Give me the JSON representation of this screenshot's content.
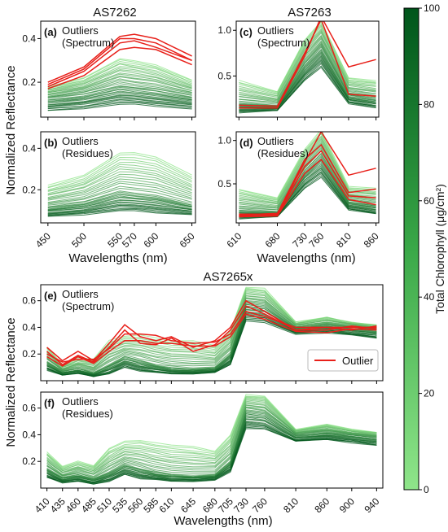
{
  "colors": {
    "outlier": "#e8201a",
    "green_light": "#8fe58a",
    "green_dark": "#00551b",
    "axis": "#000000"
  },
  "colorbar": {
    "label": "Total Chlorophyll (μg/cm²)",
    "ticks": [
      "0",
      "20",
      "40",
      "60",
      "80",
      "100"
    ],
    "range": [
      0,
      100
    ]
  },
  "chart_data": [
    {
      "id": "a",
      "type": "line",
      "group_title": "AS7262",
      "panel_label": "(a)",
      "annotation": [
        "Outliers",
        "(Spectrum)"
      ],
      "xlabel": "",
      "ylabel": "Normalized Reflectance",
      "x": [
        450,
        500,
        550,
        570,
        600,
        650
      ],
      "xticks": [],
      "xlim": [
        440,
        655
      ],
      "ylim": [
        0.04,
        0.48
      ],
      "yticks": [
        0.2,
        0.4
      ],
      "ytick_labels": [
        "0.2",
        "0.4"
      ],
      "green_band": {
        "high": [
          0.18,
          0.22,
          0.31,
          0.3,
          0.28,
          0.21
        ],
        "mid": [
          0.13,
          0.15,
          0.19,
          0.18,
          0.17,
          0.14
        ],
        "low": [
          0.07,
          0.08,
          0.1,
          0.1,
          0.09,
          0.08
        ]
      },
      "outliers": [
        [
          0.17,
          0.23,
          0.35,
          0.36,
          0.35,
          0.28
        ],
        [
          0.18,
          0.25,
          0.38,
          0.39,
          0.36,
          0.3
        ],
        [
          0.19,
          0.26,
          0.4,
          0.4,
          0.38,
          0.3
        ],
        [
          0.2,
          0.27,
          0.41,
          0.42,
          0.4,
          0.32
        ]
      ]
    },
    {
      "id": "b",
      "type": "line",
      "group_title": "",
      "panel_label": "(b)",
      "annotation": [
        "Outliers",
        "(Residues)"
      ],
      "xlabel": "Wavelengths (nm)",
      "ylabel": "Normalized Reflectance",
      "x": [
        450,
        500,
        550,
        570,
        600,
        650
      ],
      "xticks": [
        450,
        500,
        550,
        570,
        600,
        650
      ],
      "xtick_labels": [
        "450",
        "500",
        "550",
        "570",
        "600",
        "650"
      ],
      "xlim": [
        440,
        655
      ],
      "ylim": [
        0.04,
        0.48
      ],
      "yticks": [
        0.2,
        0.4
      ],
      "ytick_labels": [
        "0.2",
        "0.4"
      ],
      "green_band": {
        "high": [
          0.22,
          0.27,
          0.38,
          0.38,
          0.36,
          0.27
        ],
        "mid": [
          0.12,
          0.14,
          0.19,
          0.18,
          0.17,
          0.13
        ],
        "low": [
          0.07,
          0.08,
          0.1,
          0.1,
          0.09,
          0.08
        ]
      },
      "outliers": []
    },
    {
      "id": "c",
      "type": "line",
      "group_title": "AS7263",
      "panel_label": "(c)",
      "annotation": [
        "Outliers",
        "(Spectrum)"
      ],
      "xlabel": "",
      "ylabel": "",
      "x": [
        610,
        680,
        730,
        760,
        810,
        860
      ],
      "xticks": [],
      "xlim": [
        605,
        865
      ],
      "ylim": [
        0.05,
        1.1
      ],
      "yticks": [
        0.5,
        1.0
      ],
      "ytick_labels": [
        "0.5",
        "1.0"
      ],
      "green_band": {
        "high": [
          0.45,
          0.33,
          0.9,
          1.1,
          0.48,
          0.45
        ],
        "mid": [
          0.2,
          0.18,
          0.65,
          0.85,
          0.3,
          0.26
        ],
        "low": [
          0.1,
          0.12,
          0.45,
          0.6,
          0.2,
          0.15
        ]
      },
      "outliers": [
        [
          0.15,
          0.15,
          0.72,
          1.15,
          0.6,
          0.68
        ],
        [
          0.18,
          0.17,
          0.75,
          1.12,
          0.3,
          0.28
        ]
      ]
    },
    {
      "id": "d",
      "type": "line",
      "group_title": "",
      "panel_label": "(d)",
      "annotation": [
        "Outliers",
        "(Residues)"
      ],
      "xlabel": "Wavelengths (nm)",
      "ylabel": "",
      "x": [
        610,
        680,
        730,
        760,
        810,
        860
      ],
      "xticks": [
        610,
        680,
        730,
        760,
        810,
        860
      ],
      "xtick_labels": [
        "610",
        "680",
        "730",
        "760",
        "810",
        "860"
      ],
      "xlim": [
        605,
        865
      ],
      "ylim": [
        0.05,
        1.1
      ],
      "yticks": [
        0.5,
        1.0
      ],
      "ytick_labels": [
        "0.5",
        "1.0"
      ],
      "green_band": {
        "high": [
          0.44,
          0.34,
          0.9,
          1.12,
          0.47,
          0.45
        ],
        "mid": [
          0.2,
          0.18,
          0.65,
          0.85,
          0.3,
          0.26
        ],
        "low": [
          0.1,
          0.12,
          0.45,
          0.58,
          0.2,
          0.15
        ]
      },
      "outliers": [
        [
          0.15,
          0.15,
          0.75,
          1.1,
          0.6,
          0.68
        ],
        [
          0.14,
          0.16,
          0.78,
          0.95,
          0.4,
          0.44
        ],
        [
          0.13,
          0.14,
          0.7,
          0.88,
          0.36,
          0.34
        ],
        [
          0.12,
          0.13,
          0.62,
          0.78,
          0.32,
          0.26
        ]
      ]
    },
    {
      "id": "e",
      "type": "line",
      "group_title": "AS7265x",
      "panel_label": "(e)",
      "annotation": [
        "Outliers",
        "(Spectrum)"
      ],
      "legend": {
        "label": "Outlier",
        "position": "lower-right"
      },
      "xlabel": "",
      "ylabel": "Normalized Reflectance",
      "x": [
        410,
        435,
        460,
        485,
        510,
        535,
        560,
        585,
        610,
        645,
        680,
        705,
        730,
        760,
        810,
        860,
        900,
        940
      ],
      "xticks": [],
      "xlim": [
        400,
        950
      ],
      "ylim": [
        0.0,
        0.72
      ],
      "yticks": [
        0.2,
        0.4,
        0.6
      ],
      "ytick_labels": [
        "0.2",
        "0.4",
        "0.6"
      ],
      "green_band": {
        "high": [
          0.25,
          0.12,
          0.17,
          0.16,
          0.3,
          0.33,
          0.34,
          0.32,
          0.3,
          0.3,
          0.26,
          0.38,
          0.7,
          0.69,
          0.44,
          0.48,
          0.44,
          0.42
        ],
        "mid": [
          0.14,
          0.07,
          0.09,
          0.06,
          0.12,
          0.18,
          0.15,
          0.12,
          0.1,
          0.09,
          0.1,
          0.2,
          0.58,
          0.56,
          0.4,
          0.42,
          0.4,
          0.38
        ],
        "low": [
          0.08,
          0.04,
          0.05,
          0.03,
          0.05,
          0.1,
          0.07,
          0.06,
          0.05,
          0.05,
          0.06,
          0.12,
          0.45,
          0.44,
          0.35,
          0.36,
          0.34,
          0.32
        ]
      },
      "outliers": [
        [
          0.25,
          0.15,
          0.22,
          0.15,
          0.28,
          0.42,
          0.33,
          0.3,
          0.33,
          0.25,
          0.3,
          0.4,
          0.6,
          0.52,
          0.38,
          0.4,
          0.4,
          0.4
        ],
        [
          0.22,
          0.12,
          0.19,
          0.14,
          0.25,
          0.38,
          0.28,
          0.27,
          0.32,
          0.22,
          0.27,
          0.38,
          0.56,
          0.5,
          0.38,
          0.38,
          0.41,
          0.39
        ],
        [
          0.2,
          0.14,
          0.16,
          0.16,
          0.24,
          0.35,
          0.35,
          0.34,
          0.3,
          0.28,
          0.29,
          0.35,
          0.52,
          0.48,
          0.4,
          0.4,
          0.38,
          0.41
        ],
        [
          0.18,
          0.11,
          0.18,
          0.13,
          0.22,
          0.3,
          0.3,
          0.28,
          0.28,
          0.26,
          0.26,
          0.33,
          0.5,
          0.46,
          0.37,
          0.36,
          0.39,
          0.38
        ]
      ]
    },
    {
      "id": "f",
      "type": "line",
      "group_title": "",
      "panel_label": "(f)",
      "annotation": [
        "Outliers",
        "(Residues)"
      ],
      "xlabel": "Wavelengths (nm)",
      "ylabel": "Normalized Reflectance",
      "x": [
        410,
        435,
        460,
        485,
        510,
        535,
        560,
        585,
        610,
        645,
        680,
        705,
        730,
        760,
        810,
        860,
        900,
        940
      ],
      "xticks": [
        410,
        435,
        460,
        485,
        510,
        535,
        560,
        585,
        610,
        645,
        680,
        705,
        730,
        760,
        810,
        860,
        900,
        940
      ],
      "xtick_labels": [
        "410",
        "435",
        "460",
        "485",
        "510",
        "535",
        "560",
        "585",
        "610",
        "645",
        "680",
        "705",
        "730",
        "760",
        "810",
        "860",
        "900",
        "940"
      ],
      "xlim": [
        400,
        950
      ],
      "ylim": [
        0.0,
        0.72
      ],
      "yticks": [
        0.2,
        0.4,
        0.6
      ],
      "ytick_labels": [
        "0.2",
        "0.4",
        "0.6"
      ],
      "green_band": {
        "high": [
          0.27,
          0.16,
          0.2,
          0.17,
          0.3,
          0.35,
          0.36,
          0.34,
          0.32,
          0.31,
          0.28,
          0.4,
          0.7,
          0.69,
          0.44,
          0.48,
          0.44,
          0.42
        ],
        "mid": [
          0.15,
          0.08,
          0.1,
          0.07,
          0.12,
          0.18,
          0.15,
          0.12,
          0.1,
          0.09,
          0.1,
          0.2,
          0.58,
          0.56,
          0.4,
          0.42,
          0.4,
          0.38
        ],
        "low": [
          0.08,
          0.04,
          0.05,
          0.03,
          0.05,
          0.1,
          0.07,
          0.06,
          0.05,
          0.05,
          0.06,
          0.12,
          0.45,
          0.44,
          0.35,
          0.36,
          0.34,
          0.32
        ]
      },
      "outliers": []
    }
  ]
}
